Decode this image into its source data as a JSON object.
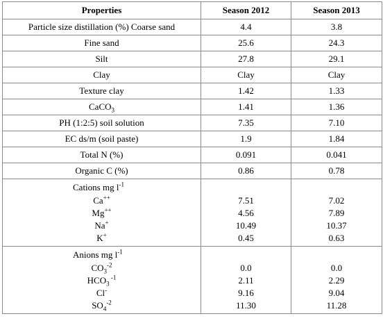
{
  "headers": {
    "properties": "Properties",
    "season_2012": "Season 2012",
    "season_2013": "Season 2013"
  },
  "rows": [
    {
      "property": "Particle size distillation (%) Coarse sand",
      "v2012": "4.4",
      "v2013": "3.8"
    },
    {
      "property": "Fine sand",
      "v2012": "25.6",
      "v2013": "24.3"
    },
    {
      "property": "Silt",
      "v2012": "27.8",
      "v2013": "29.1"
    },
    {
      "property": "Clay",
      "v2012": "Clay",
      "v2013": "Clay"
    },
    {
      "property": "Texture clay",
      "v2012": "1.42",
      "v2013": "1.33"
    },
    {
      "property": "CaCO",
      "property_sub": "3",
      "v2012": "1.41",
      "v2013": "1.36"
    },
    {
      "property": "PH (1:2:5) soil solution",
      "v2012": "7.35",
      "v2013": "7.10"
    },
    {
      "property": "EC ds/m (soil paste)",
      "v2012": "1.9",
      "v2013": "1.84"
    },
    {
      "property": "Total N (%)",
      "v2012": "0.091",
      "v2013": "0.041"
    },
    {
      "property": "Organic C (%)",
      "v2012": "0.86",
      "v2013": "0.78"
    }
  ],
  "cations": {
    "title": "Cations mg l",
    "title_sup": "-1",
    "items": [
      {
        "name": "Ca",
        "sup": "++",
        "v2012": "7.51",
        "v2013": "7.02"
      },
      {
        "name": "Mg",
        "sup": "++",
        "v2012": "4.56",
        "v2013": "7.89"
      },
      {
        "name": "Na",
        "sup": "+",
        "v2012": "10.49",
        "v2013": "10.37"
      },
      {
        "name": "K",
        "sup": "+",
        "v2012": "0.45",
        "v2013": "0.63"
      }
    ]
  },
  "anions": {
    "title": "Anions mg l",
    "title_sup": "-1",
    "items": [
      {
        "name": "CO",
        "sub": "3",
        "sup": "-2",
        "v2012": "0.0",
        "v2013": "0.0"
      },
      {
        "name": "HCO",
        "sub": "3",
        "sup": " -1",
        "v2012": "2.11",
        "v2013": "2.29"
      },
      {
        "name": "Cl",
        "sup": "-",
        "v2012": "9.16",
        "v2013": "9.04"
      },
      {
        "name": "SO",
        "sub": "4",
        "sup": "-2",
        "v2012": "11.30",
        "v2013": "11.28"
      }
    ]
  }
}
